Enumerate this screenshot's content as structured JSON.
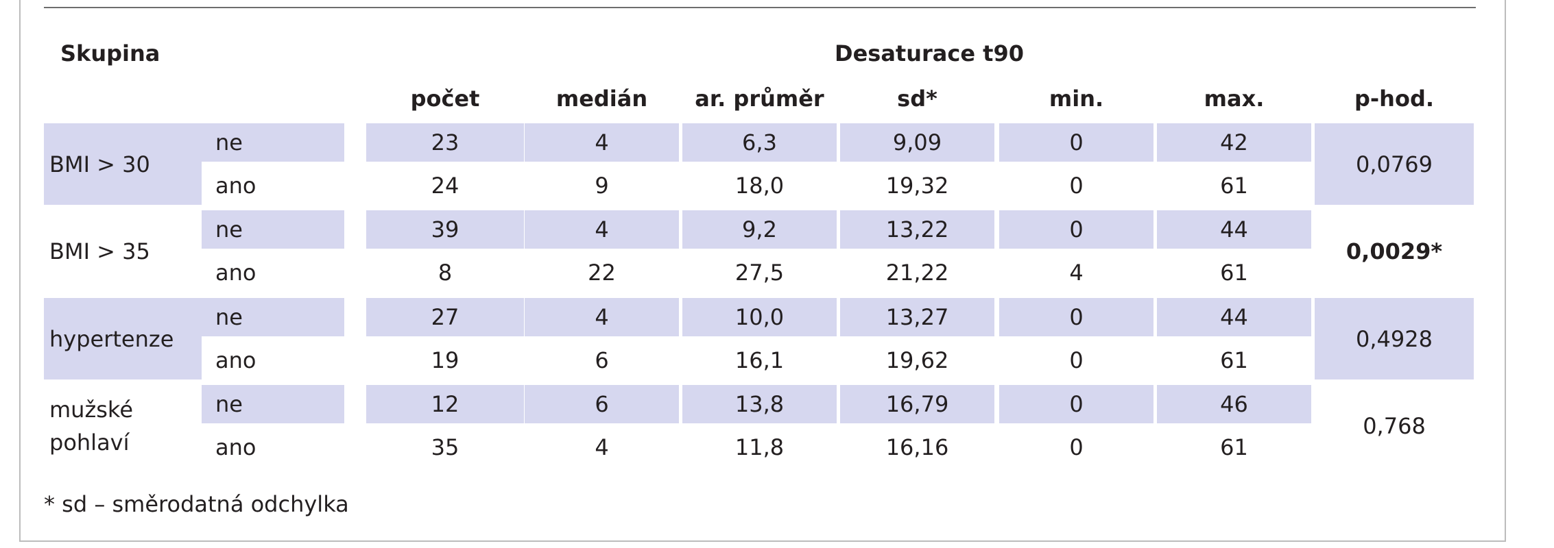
{
  "table": {
    "header_group": "Skupina",
    "header_main": "Desaturace t90",
    "columns": [
      "počet",
      "medián",
      "ar. průměr",
      "sd*",
      "min.",
      "max.",
      "p-hod."
    ],
    "groups": [
      {
        "label_lines": [
          "BMI > 30"
        ],
        "p_value": "0,0769",
        "p_bold": false,
        "rows": [
          {
            "sub": "ne",
            "values": [
              "23",
              "4",
              "6,3",
              "9,09",
              "0",
              "42"
            ]
          },
          {
            "sub": "ano",
            "values": [
              "24",
              "9",
              "18,0",
              "19,32",
              "0",
              "61"
            ]
          }
        ]
      },
      {
        "label_lines": [
          "BMI > 35"
        ],
        "p_value": "0,0029*",
        "p_bold": true,
        "rows": [
          {
            "sub": "ne",
            "values": [
              "39",
              "4",
              "9,2",
              "13,22",
              "0",
              "44"
            ]
          },
          {
            "sub": "ano",
            "values": [
              "8",
              "22",
              "27,5",
              "21,22",
              "4",
              "61"
            ]
          }
        ]
      },
      {
        "label_lines": [
          "hypertenze"
        ],
        "p_value": "0,4928",
        "p_bold": false,
        "rows": [
          {
            "sub": "ne",
            "values": [
              "27",
              "4",
              "10,0",
              "13,27",
              "0",
              "44"
            ]
          },
          {
            "sub": "ano",
            "values": [
              "19",
              "6",
              "16,1",
              "19,62",
              "0",
              "61"
            ]
          }
        ]
      },
      {
        "label_lines": [
          "mužské",
          "pohlaví"
        ],
        "p_value": "0,768",
        "p_bold": false,
        "rows": [
          {
            "sub": "ne",
            "values": [
              "12",
              "6",
              "13,8",
              "16,79",
              "0",
              "46"
            ]
          },
          {
            "sub": "ano",
            "values": [
              "35",
              "4",
              "11,8",
              "16,16",
              "0",
              "61"
            ]
          }
        ]
      }
    ],
    "footnote": "* sd – směrodatná odchylka",
    "colors": {
      "shade": "#d6d7ef",
      "text": "#231f20",
      "rule": "#6d6d6d"
    }
  }
}
